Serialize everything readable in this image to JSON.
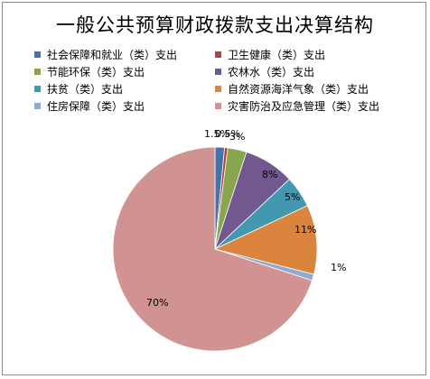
{
  "chart_data": {
    "type": "pie",
    "title": "一般公共预算财政拨款支出决算结构",
    "legend_position": "top",
    "slices": [
      {
        "name": "社会保障和就业（类）支出",
        "value": 1.5,
        "label": "1.5%",
        "color": "#4572A7"
      },
      {
        "name": "卫生健康（类）支出",
        "value": 0.5,
        "label": "0.5%",
        "color": "#AA4643"
      },
      {
        "name": "节能环保（类）支出",
        "value": 3,
        "label": "3%",
        "color": "#89A54E"
      },
      {
        "name": "农林水（类）支出",
        "value": 8,
        "label": "8%",
        "color": "#71588F"
      },
      {
        "name": "扶贫（类）支出",
        "value": 5,
        "label": "5%",
        "color": "#4198AF"
      },
      {
        "name": "自然资源海洋气象（类）支出",
        "value": 11,
        "label": "11%",
        "color": "#DB843D"
      },
      {
        "name": "住房保障（类）支出",
        "value": 1,
        "label": "1%",
        "color": "#93A9CF"
      },
      {
        "name": "灾害防治及应急管理（类）支出",
        "value": 70,
        "label": "70%",
        "color": "#D19392"
      }
    ]
  }
}
